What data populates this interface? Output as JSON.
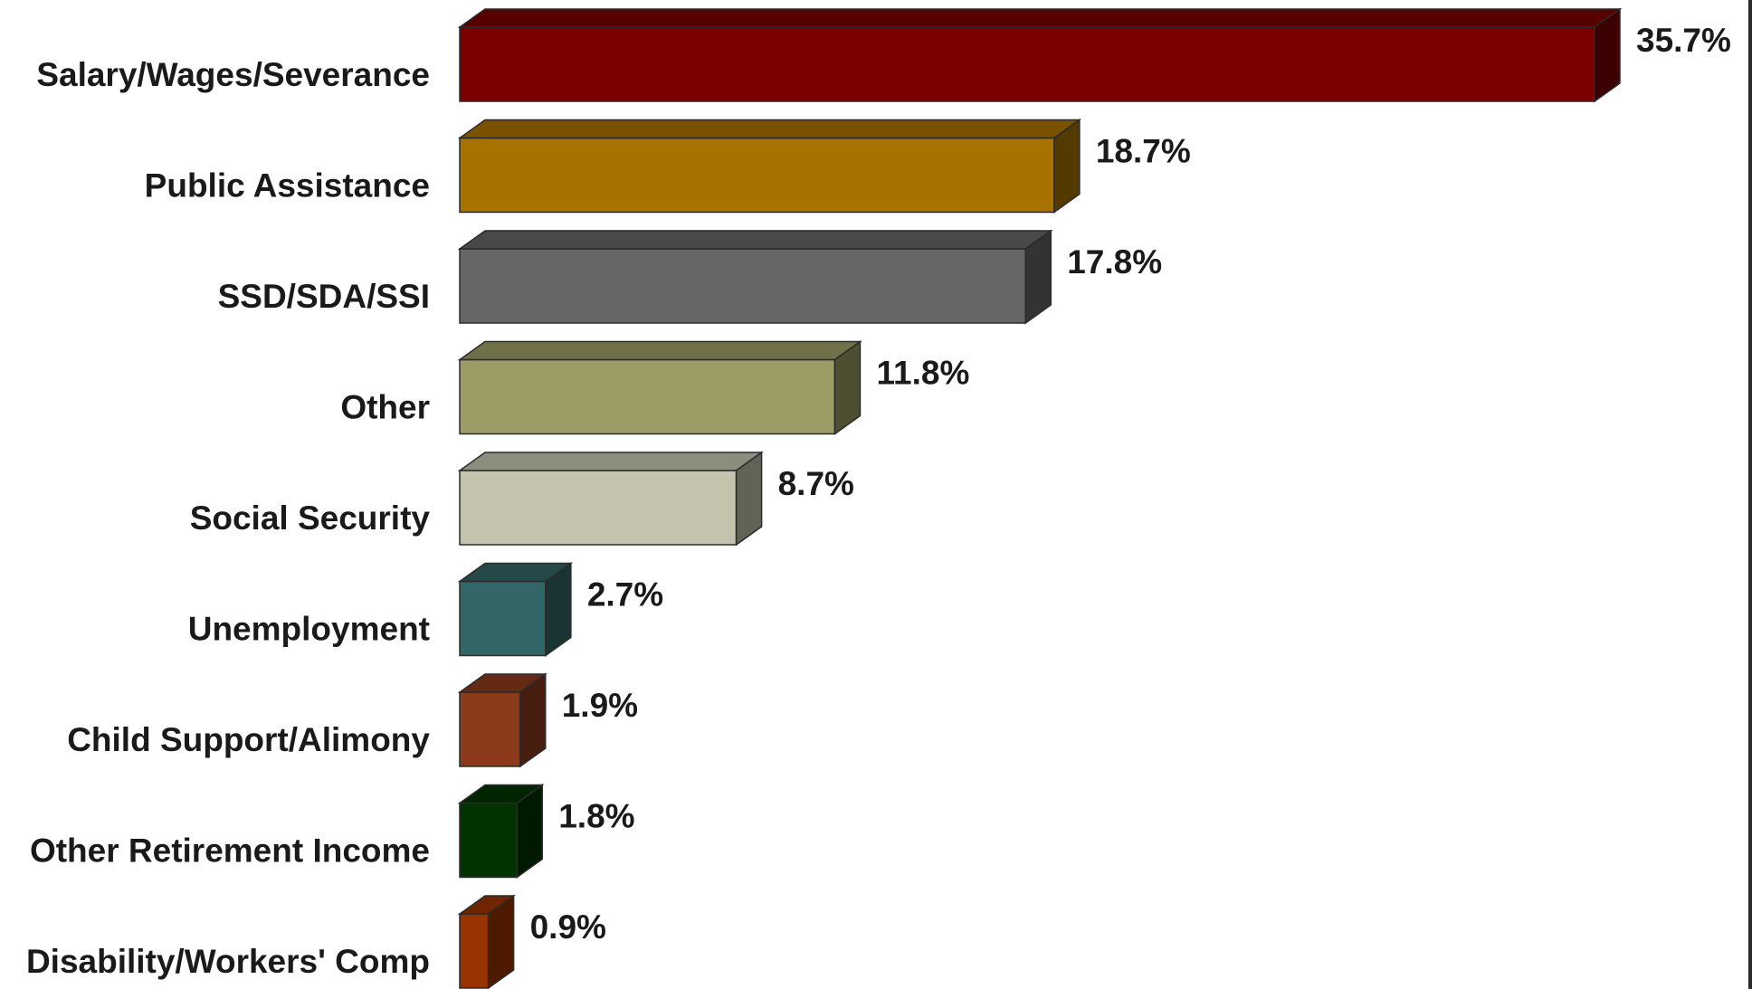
{
  "chart_data": {
    "type": "bar",
    "orientation": "horizontal",
    "style": "3d",
    "title": "",
    "xlabel": "",
    "ylabel": "",
    "xlim": [
      0,
      35.7
    ],
    "grid": false,
    "legend": "none",
    "categories": [
      "Salary/Wages/Severance",
      "Public Assistance",
      "SSD/SDA/SSI",
      "Other",
      "Social Security",
      "Unemployment",
      "Child Support/Alimony",
      "Other Retirement Income",
      "Disability/Workers' Comp"
    ],
    "values": [
      35.7,
      18.7,
      17.8,
      11.8,
      8.7,
      2.7,
      1.9,
      1.8,
      0.9
    ],
    "value_labels": [
      "35.7%",
      "18.7%",
      "17.8%",
      "11.8%",
      "8.7%",
      "2.7%",
      "1.9%",
      "1.8%",
      "0.9%"
    ],
    "colors": [
      "#7a0000",
      "#a87200",
      "#666666",
      "#9c9c66",
      "#c4c4ae",
      "#336666",
      "#8b3a1c",
      "#003300",
      "#993300"
    ]
  }
}
